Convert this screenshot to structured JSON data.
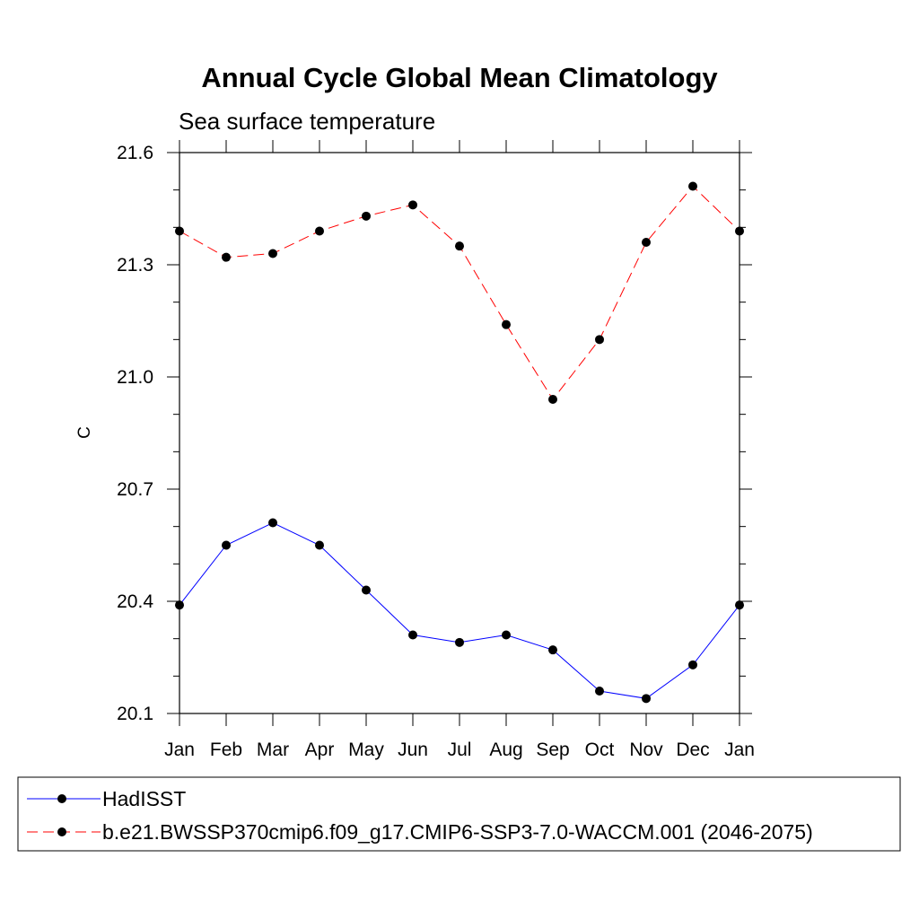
{
  "chart_data": {
    "type": "line",
    "title": "Annual Cycle Global Mean Climatology",
    "subtitle": "Sea surface temperature",
    "xlabel": "",
    "ylabel": "C",
    "categories": [
      "Jan",
      "Feb",
      "Mar",
      "Apr",
      "May",
      "Jun",
      "Jul",
      "Aug",
      "Sep",
      "Oct",
      "Nov",
      "Dec",
      "Jan"
    ],
    "ylim": [
      20.1,
      21.6
    ],
    "yticks": [
      "21.6",
      "21.3",
      "21.0",
      "20.7",
      "20.4",
      "20.1"
    ],
    "ytick_values": [
      21.6,
      21.3,
      21.0,
      20.7,
      20.4,
      20.1
    ],
    "grid": false,
    "legend_position": "bottom",
    "series": [
      {
        "name": "HadISST",
        "color": "#0000ff",
        "dash": "solid",
        "values": [
          20.39,
          20.55,
          20.61,
          20.55,
          20.43,
          20.31,
          20.29,
          20.31,
          20.27,
          20.16,
          20.14,
          20.23,
          20.39
        ]
      },
      {
        "name": "b.e21.BWSSP370cmip6.f09_g17.CMIP6-SSP3-7.0-WACCM.001 (2046-2075)",
        "color": "#ff0000",
        "dash": "dashed",
        "values": [
          21.39,
          21.32,
          21.33,
          21.39,
          21.43,
          21.46,
          21.35,
          21.14,
          20.94,
          21.1,
          21.36,
          21.51,
          21.39
        ]
      }
    ]
  }
}
